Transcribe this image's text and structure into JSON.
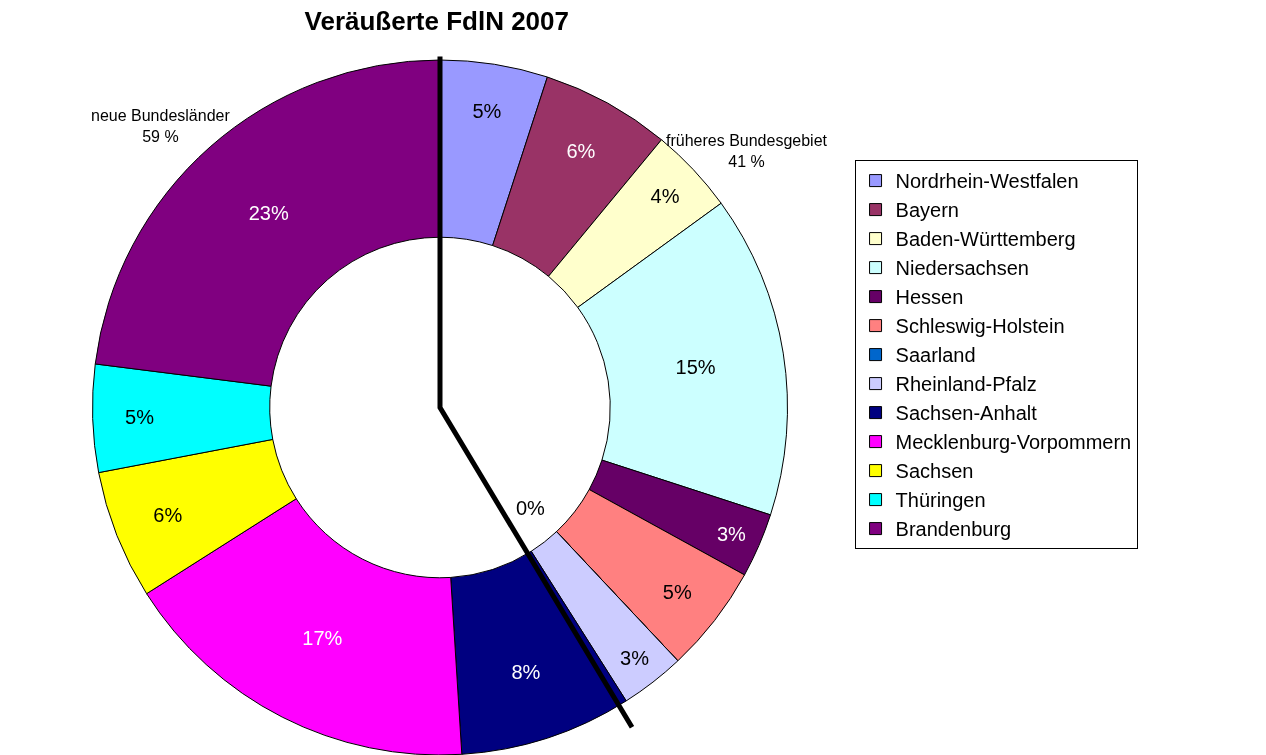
{
  "chart_data": {
    "type": "donut",
    "title": "Veräußerte FdlN 2007",
    "categories": [
      "Nordrhein-Westfalen",
      "Bayern",
      "Baden-Württemberg",
      "Niedersachsen",
      "Hessen",
      "Schleswig-Holstein",
      "Saarland",
      "Rheinland-Pfalz",
      "Sachsen-Anhalt",
      "Mecklenburg-Vorpommern",
      "Sachsen",
      "Thüringen",
      "Brandenburg"
    ],
    "values": [
      5,
      6,
      4,
      15,
      3,
      5,
      0,
      3,
      8,
      17,
      6,
      5,
      23
    ],
    "colors": [
      "#9999ff",
      "#993366",
      "#ffffcc",
      "#ccffff",
      "#660066",
      "#ff8080",
      "#0066cc",
      "#ccccff",
      "#000080",
      "#ff00ff",
      "#ffff00",
      "#00ffff",
      "#800080"
    ],
    "value_labels": [
      "5%",
      "6%",
      "4%",
      "15%",
      "3%",
      "5%",
      "0%",
      "3%",
      "8%",
      "17%",
      "6%",
      "5%",
      "23%"
    ],
    "annotations": [
      "neue Bundesländer\n59 %",
      "früheres Bundesgebiet\n41 %"
    ],
    "legend": "right"
  }
}
